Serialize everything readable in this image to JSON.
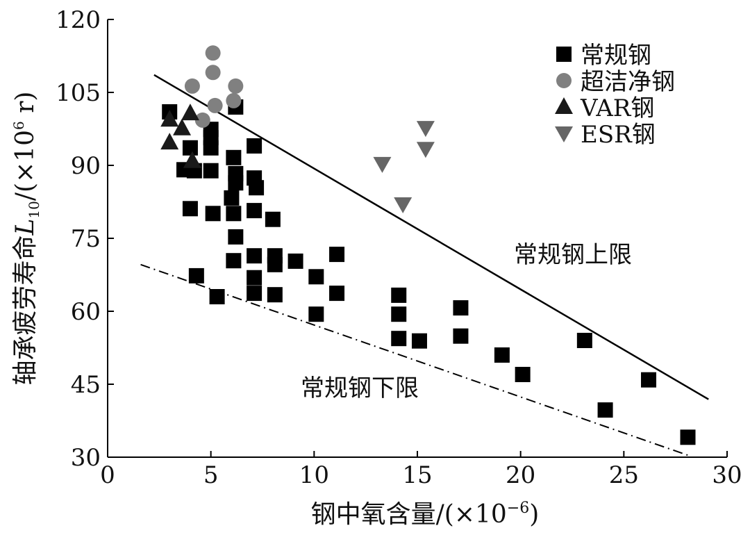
{
  "chart_data": {
    "type": "scatter",
    "xlabel": "钢中氧含量/(×10",
    "xlabel_sup": "−6",
    "xlabel_end": ")",
    "ylabel": "轴承疲劳寿命",
    "ylabel_var": "L",
    "ylabel_sub": "10",
    "ylabel_unit": "/(×10",
    "ylabel_sup": "6",
    "ylabel_unit_end": " r)",
    "xlim": [
      0,
      30
    ],
    "ylim": [
      30,
      120
    ],
    "xticks": [
      0,
      5,
      10,
      15,
      20,
      25,
      30
    ],
    "yticks": [
      30,
      45,
      60,
      75,
      90,
      105,
      120
    ],
    "grid": false,
    "legend_position": "top-right",
    "series": [
      {
        "name": "常规钢",
        "marker": "square",
        "color": "#000000",
        "points": [
          [
            3.0,
            101
          ],
          [
            6.2,
            102
          ],
          [
            4.0,
            93.6
          ],
          [
            5.0,
            97.4
          ],
          [
            5.0,
            95.7
          ],
          [
            5.0,
            93.6
          ],
          [
            3.7,
            89.1
          ],
          [
            4.2,
            88.9
          ],
          [
            5.0,
            88.9
          ],
          [
            6.1,
            91.6
          ],
          [
            7.1,
            94
          ],
          [
            6.2,
            88.3
          ],
          [
            6.2,
            86.4
          ],
          [
            6.0,
            83.3
          ],
          [
            7.1,
            87.4
          ],
          [
            7.2,
            85.4
          ],
          [
            4.0,
            81.1
          ],
          [
            5.1,
            80.1
          ],
          [
            6.1,
            80.1
          ],
          [
            7.1,
            80.7
          ],
          [
            8.0,
            78.9
          ],
          [
            6.2,
            75.3
          ],
          [
            6.1,
            70.4
          ],
          [
            7.1,
            71.4
          ],
          [
            8.1,
            71.4
          ],
          [
            8.1,
            69.6
          ],
          [
            9.1,
            70.3
          ],
          [
            11.1,
            71.7
          ],
          [
            4.3,
            67.3
          ],
          [
            7.1,
            66.9
          ],
          [
            10.1,
            67.1
          ],
          [
            7.1,
            63.7
          ],
          [
            8.1,
            63.4
          ],
          [
            11.1,
            63.7
          ],
          [
            5.3,
            63
          ],
          [
            10.1,
            59.4
          ],
          [
            14.1,
            63.3
          ],
          [
            14.1,
            59.4
          ],
          [
            14.1,
            54.4
          ],
          [
            15.1,
            53.9
          ],
          [
            17.1,
            60.7
          ],
          [
            17.1,
            54.9
          ],
          [
            19.1,
            51
          ],
          [
            20.1,
            47
          ],
          [
            23.1,
            54
          ],
          [
            24.1,
            39.7
          ],
          [
            26.2,
            45.9
          ],
          [
            28.1,
            34.1
          ]
        ]
      },
      {
        "name": "超洁净钢",
        "marker": "circle",
        "color": "#808080",
        "points": [
          [
            4.1,
            106.3
          ],
          [
            5.1,
            113.1
          ],
          [
            5.1,
            109.1
          ],
          [
            6.2,
            106.3
          ],
          [
            4.6,
            99.3
          ],
          [
            5.2,
            102.3
          ],
          [
            6.1,
            103.3
          ]
        ]
      },
      {
        "name": "VAR钢",
        "marker": "triangle-up",
        "color": "#1a1a1a",
        "points": [
          [
            3.0,
            99.4
          ],
          [
            3.0,
            94.7
          ],
          [
            3.6,
            97.6
          ],
          [
            4.0,
            100.7
          ],
          [
            4.1,
            90.9
          ]
        ]
      },
      {
        "name": "ESR钢",
        "marker": "triangle-down",
        "color": "#666666",
        "points": [
          [
            13.3,
            90.3
          ],
          [
            14.3,
            82
          ],
          [
            15.4,
            97.7
          ],
          [
            15.4,
            93.4
          ]
        ]
      }
    ],
    "lines": [
      {
        "label": "常规钢上限",
        "style": "solid",
        "from": [
          2.25,
          108.6
        ],
        "to": [
          29.1,
          41.9
        ]
      },
      {
        "label": "常规钢下限",
        "style": "dash-dot",
        "from": [
          1.6,
          69.6
        ],
        "to": [
          28.1,
          30.4
        ]
      }
    ]
  }
}
